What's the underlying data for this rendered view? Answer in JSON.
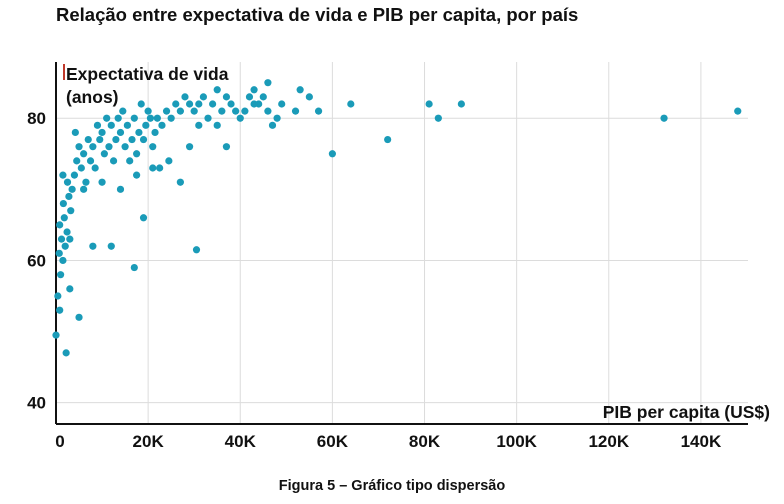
{
  "chart_data": {
    "type": "scatter",
    "title": "Relação entre expectativa de vida e PIB per capita, por país",
    "caption": "Figura 5 – Gráfico tipo dispersão",
    "xlabel": "PIB per capita (US$)",
    "ylabel_line1": "Expectativa de vida",
    "ylabel_line2": "(anos)",
    "xlim": [
      0,
      155000
    ],
    "ylim": [
      37,
      91
    ],
    "grid": true,
    "x_ticks": [
      {
        "value": 0,
        "label": "0"
      },
      {
        "value": 20000,
        "label": "20K"
      },
      {
        "value": 40000,
        "label": "40K"
      },
      {
        "value": 60000,
        "label": "60K"
      },
      {
        "value": 80000,
        "label": "80K"
      },
      {
        "value": 100000,
        "label": "100K"
      },
      {
        "value": 120000,
        "label": "120K"
      },
      {
        "value": 140000,
        "label": "140K"
      }
    ],
    "y_ticks": [
      {
        "value": 40,
        "label": "40"
      },
      {
        "value": 60,
        "label": "60"
      },
      {
        "value": 80,
        "label": "80"
      }
    ],
    "point_color": "#1a9bb8",
    "points": [
      [
        0,
        49.5
      ],
      [
        800,
        53
      ],
      [
        1000,
        58
      ],
      [
        1500,
        60
      ],
      [
        2000,
        62
      ],
      [
        800,
        65
      ],
      [
        1200,
        63
      ],
      [
        1800,
        66
      ],
      [
        1500,
        72
      ],
      [
        2500,
        71
      ],
      [
        2200,
        47
      ],
      [
        3000,
        56
      ],
      [
        400,
        55
      ],
      [
        700,
        61
      ],
      [
        1600,
        68
      ],
      [
        2400,
        64
      ],
      [
        2800,
        69
      ],
      [
        3200,
        67
      ],
      [
        3500,
        70
      ],
      [
        4000,
        72
      ],
      [
        4200,
        78
      ],
      [
        4500,
        74
      ],
      [
        5000,
        76
      ],
      [
        5500,
        73
      ],
      [
        6000,
        75
      ],
      [
        6500,
        71
      ],
      [
        7000,
        77
      ],
      [
        7500,
        74
      ],
      [
        8000,
        76
      ],
      [
        8500,
        73
      ],
      [
        9000,
        79
      ],
      [
        9500,
        77
      ],
      [
        10000,
        78
      ],
      [
        10500,
        75
      ],
      [
        11000,
        80
      ],
      [
        11500,
        76
      ],
      [
        12000,
        79
      ],
      [
        12500,
        74
      ],
      [
        13000,
        77
      ],
      [
        13500,
        80
      ],
      [
        14000,
        78
      ],
      [
        14500,
        81
      ],
      [
        15000,
        76
      ],
      [
        15500,
        79
      ],
      [
        16000,
        74
      ],
      [
        16500,
        77
      ],
      [
        17000,
        80
      ],
      [
        17500,
        75
      ],
      [
        18000,
        78
      ],
      [
        18500,
        82
      ],
      [
        19000,
        77
      ],
      [
        19500,
        79
      ],
      [
        20000,
        81
      ],
      [
        20500,
        80
      ],
      [
        21000,
        76
      ],
      [
        21500,
        78
      ],
      [
        22000,
        80
      ],
      [
        22500,
        73
      ],
      [
        23000,
        79
      ],
      [
        24000,
        81
      ],
      [
        25000,
        80
      ],
      [
        26000,
        82
      ],
      [
        27000,
        81
      ],
      [
        28000,
        83
      ],
      [
        29000,
        82
      ],
      [
        30000,
        81
      ],
      [
        31000,
        82
      ],
      [
        32000,
        83
      ],
      [
        33000,
        80
      ],
      [
        34000,
        82
      ],
      [
        35000,
        84
      ],
      [
        36000,
        81
      ],
      [
        37000,
        83
      ],
      [
        38000,
        82
      ],
      [
        40000,
        80
      ],
      [
        41000,
        81
      ],
      [
        42000,
        83
      ],
      [
        43000,
        84
      ],
      [
        44000,
        82
      ],
      [
        45000,
        83
      ],
      [
        46000,
        85
      ],
      [
        47000,
        79
      ],
      [
        48000,
        80
      ],
      [
        53000,
        84
      ],
      [
        55000,
        83
      ],
      [
        57000,
        81
      ],
      [
        60000,
        75
      ],
      [
        64000,
        82
      ],
      [
        72000,
        77
      ],
      [
        81000,
        82
      ],
      [
        83000,
        80
      ],
      [
        88000,
        82
      ],
      [
        132000,
        80
      ],
      [
        148000,
        81
      ],
      [
        17000,
        59
      ],
      [
        30500,
        61.5
      ],
      [
        37000,
        76
      ],
      [
        19000,
        66
      ],
      [
        12000,
        62
      ],
      [
        8000,
        62
      ],
      [
        5000,
        52
      ],
      [
        3000,
        63
      ],
      [
        6000,
        70
      ],
      [
        10000,
        71
      ],
      [
        14000,
        70
      ],
      [
        17500,
        72
      ],
      [
        21000,
        73
      ],
      [
        24500,
        74
      ],
      [
        27000,
        71
      ],
      [
        29000,
        76
      ],
      [
        31000,
        79
      ],
      [
        35000,
        79
      ],
      [
        39000,
        81
      ],
      [
        43000,
        82
      ],
      [
        46000,
        81
      ],
      [
        49000,
        82
      ],
      [
        52000,
        81
      ]
    ]
  }
}
